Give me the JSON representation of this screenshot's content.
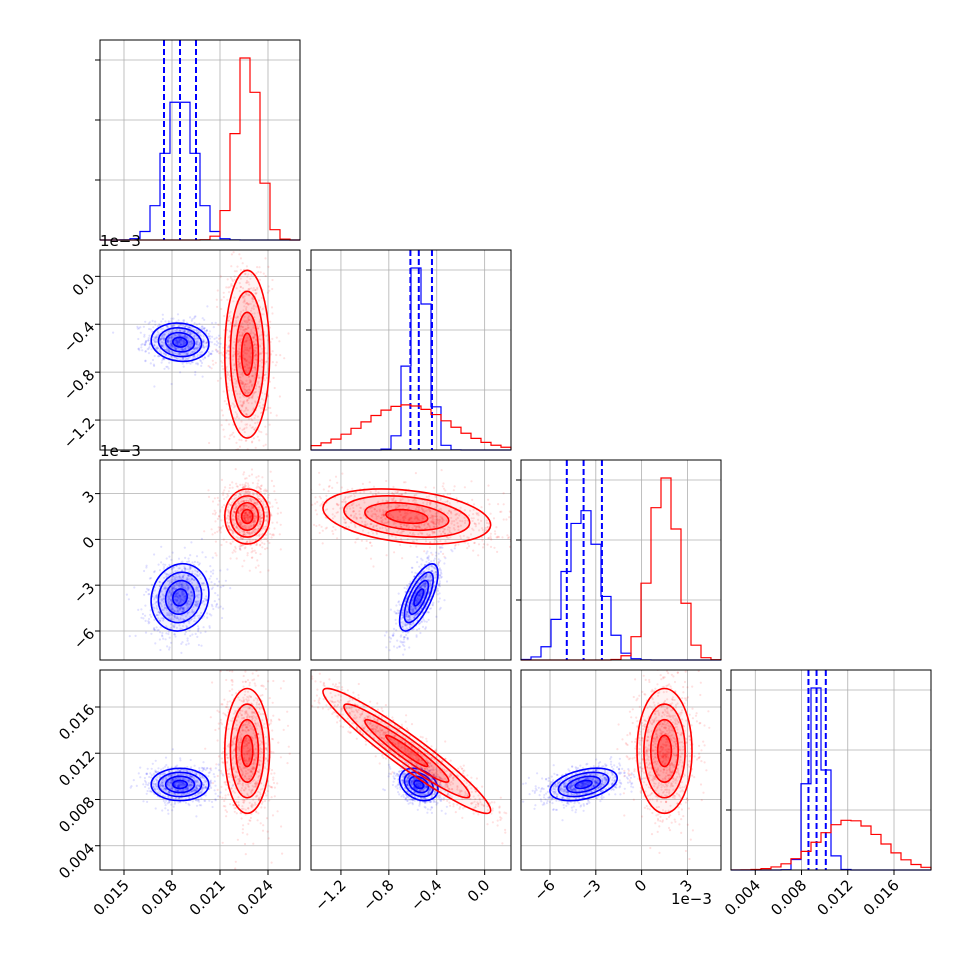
{
  "chart_data": {
    "type": "corner",
    "parameters": [
      {
        "ticks": [
          0.015,
          0.018,
          0.021,
          0.024
        ],
        "tick_labels": [
          "0.015",
          "0.018",
          "0.021",
          "0.024"
        ],
        "range": [
          0.0135,
          0.026
        ]
      },
      {
        "ticks": [
          0.0,
          -0.0004,
          -0.0008,
          -0.0012
        ],
        "tick_labels": [
          "0.0",
          "−0.4",
          "−0.8",
          "−1.2"
        ],
        "range": [
          -0.00145,
          0.00022
        ],
        "offset": "1e−3"
      },
      {
        "ticks": [
          0.003,
          0,
          -0.003,
          -0.006
        ],
        "tick_labels": [
          "3",
          "0",
          "−3",
          "−6"
        ],
        "range": [
          -0.0079,
          0.0052
        ],
        "offset": "1e−3"
      },
      {
        "ticks": [
          0.004,
          0.008,
          0.012,
          0.016
        ],
        "tick_labels": [
          "0.004",
          "0.008",
          "0.012",
          "0.016"
        ],
        "range": [
          0.0019,
          0.0192
        ]
      }
    ],
    "series": [
      {
        "color": "#0000ff",
        "means": [
          0.0185,
          -0.00055,
          -0.0038,
          0.0093
        ],
        "sds": [
          0.0009,
          8e-05,
          0.0011,
          0.0007
        ],
        "quantiles": [
          [
            0.0175,
            0.0185,
            0.0195
          ],
          [
            -0.00062,
            -0.00055,
            -0.00044
          ],
          [
            -0.0049,
            -0.0038,
            -0.0026
          ],
          [
            0.0086,
            0.0093,
            0.0101
          ]
        ],
        "correlations": {
          "1-0": -0.1,
          "2-0": 0.1,
          "2-1": 0.7,
          "3-0": 0.0,
          "3-1": -0.3,
          "3-2": 0.4
        }
      },
      {
        "color": "#ff0000",
        "means": [
          0.0227,
          -0.00065,
          0.0015,
          0.0122
        ],
        "sds": [
          0.0007,
          0.00035,
          0.0009,
          0.0027
        ],
        "quantiles": [],
        "correlations": {
          "1-0": 0.0,
          "2-0": 0.0,
          "2-1": -0.3,
          "3-0": 0.0,
          "3-1": -0.95,
          "3-2": 0.0
        }
      }
    ]
  }
}
